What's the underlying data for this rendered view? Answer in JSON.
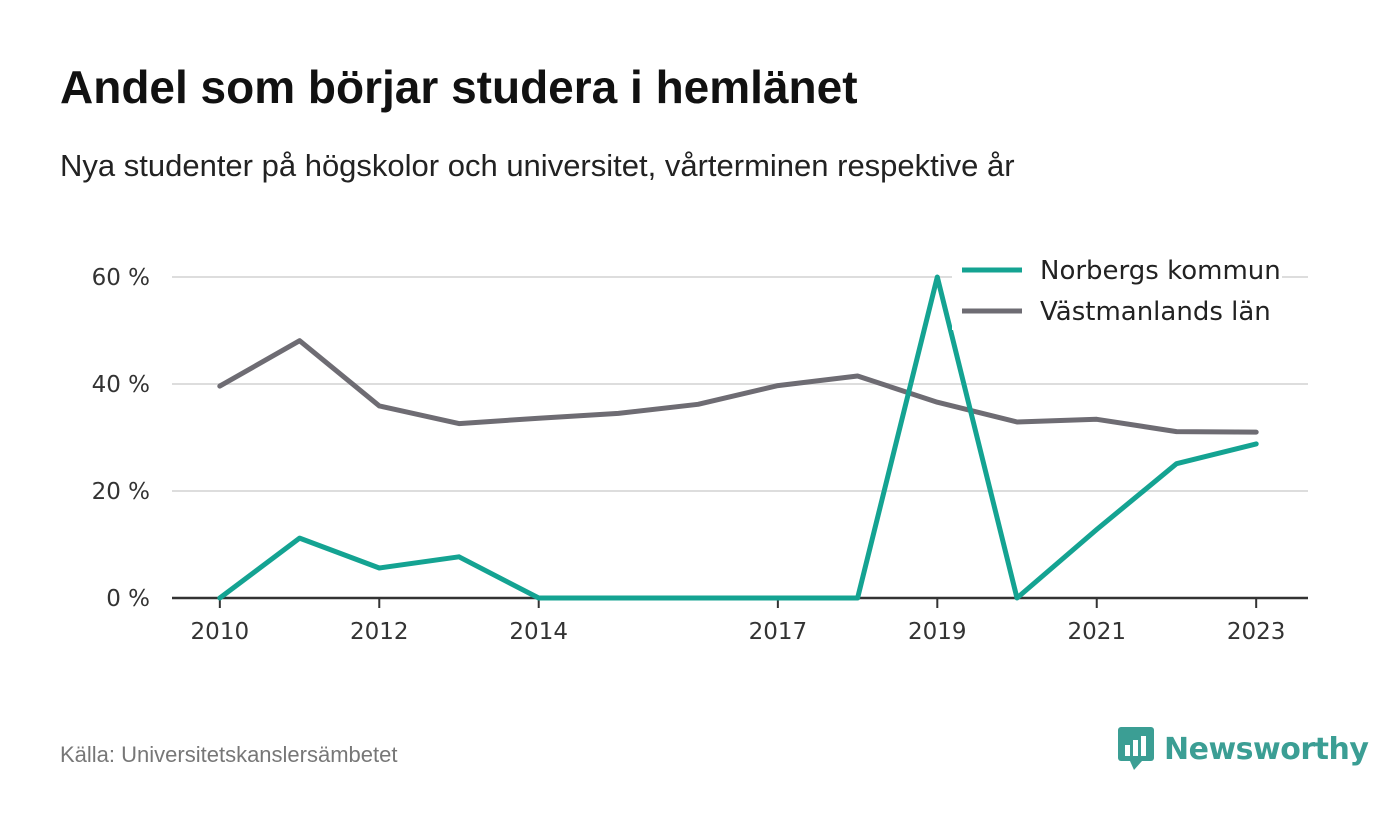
{
  "title": "Andel som börjar studera i hemlänet",
  "subtitle": "Nya studenter på högskolor och universitet, vårterminen respektive år",
  "source": "Källa: Universitetskanslersämbetet",
  "brand": "Newsworthy",
  "colors": {
    "norberg": "#14a392",
    "vastmanland": "#6e6c73",
    "grid": "#dddddd",
    "axis": "#333333",
    "brand": "#3b9e94"
  },
  "icons": {
    "brand_logo": "newsworthy-bar-chart-speech-bubble-icon"
  },
  "chart_data": {
    "type": "line",
    "x_ticks": [
      2010,
      2012,
      2014,
      2017,
      2019,
      2021,
      2023
    ],
    "y_ticks": [
      0,
      20,
      40,
      60
    ],
    "y_tick_labels": [
      "0 %",
      "20 %",
      "40 %",
      "60 %"
    ],
    "xlim": [
      2009.4,
      2023.65
    ],
    "ylim": [
      0,
      60
    ],
    "grid": "horizontal",
    "legend_position": "top-right",
    "x": [
      2010,
      2011,
      2012,
      2013,
      2014,
      2015,
      2016,
      2017,
      2018,
      2019,
      2020,
      2021,
      2022,
      2023
    ],
    "series": [
      {
        "name": "Norbergs kommun",
        "color": "#14a392",
        "values": [
          0,
          11.2,
          5.6,
          7.7,
          0,
          0,
          0,
          0,
          0,
          60,
          0,
          12.8,
          25.1,
          28.8
        ]
      },
      {
        "name": "Västmanlands län",
        "color": "#6e6c73",
        "values": [
          39.6,
          48.1,
          35.9,
          32.6,
          33.6,
          34.5,
          36.2,
          39.7,
          41.5,
          36.6,
          32.9,
          33.4,
          31.1,
          31.0
        ]
      }
    ]
  }
}
